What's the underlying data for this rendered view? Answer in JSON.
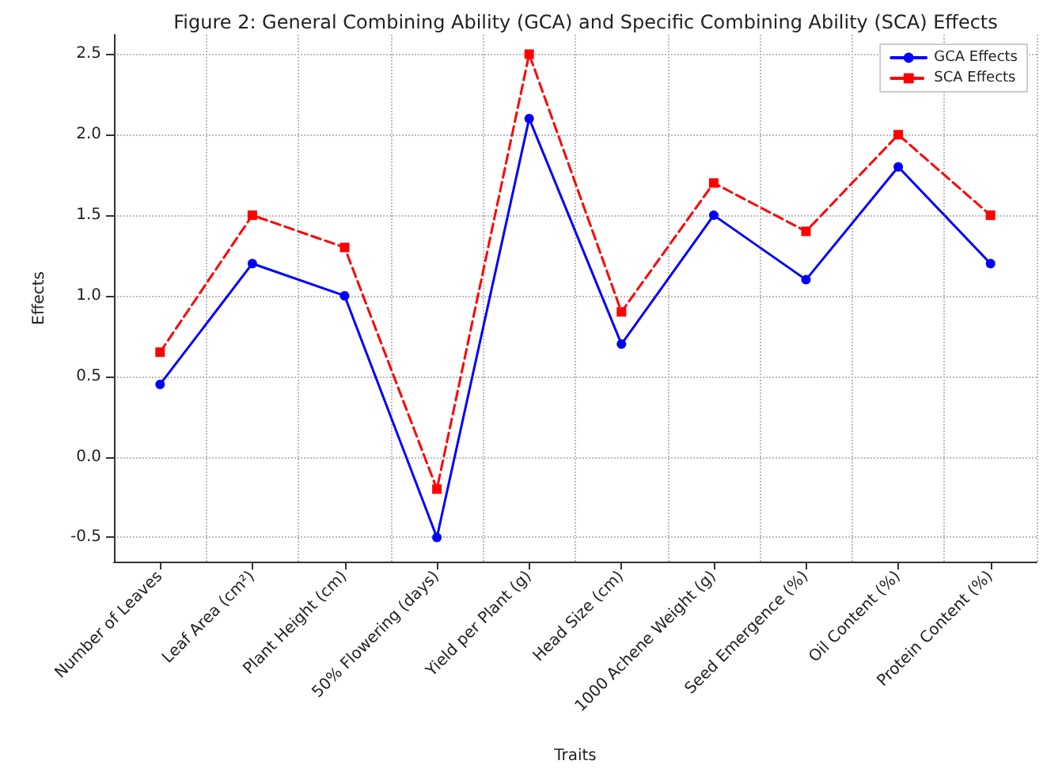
{
  "chart_data": {
    "type": "line",
    "title": "Figure 2: General Combining Ability (GCA) and Specific Combining Ability (SCA) Effects",
    "xlabel": "Traits",
    "ylabel": "Effects",
    "categories": [
      "Number of Leaves",
      "Leaf Area (cm²)",
      "Plant Height (cm)",
      "50% Flowering (days)",
      "Yield per Plant (g)",
      "Head Size (cm)",
      "1000 Achene Weight (g)",
      "Seed Emergence (%)",
      "Oil Content (%)",
      "Protein Content (%)"
    ],
    "series": [
      {
        "name": "GCA Effects",
        "color": "#0000ff",
        "values": [
          0.45,
          1.2,
          1.0,
          -0.5,
          2.1,
          0.7,
          1.5,
          1.1,
          1.8,
          1.2
        ],
        "marker": "circle",
        "line_style": "solid"
      },
      {
        "name": "SCA Effects",
        "color": "#ff0000",
        "values": [
          0.65,
          1.5,
          1.3,
          -0.2,
          2.5,
          0.9,
          1.7,
          1.4,
          2.0,
          1.5
        ],
        "marker": "square",
        "line_style": "dashed"
      }
    ],
    "ylim": [
      -0.65,
      2.62
    ],
    "yticks": [
      -0.5,
      {
        "value": 0,
        "label": "0.0"
      },
      0.5,
      {
        "value": 1,
        "label": "1.0"
      },
      1.5,
      {
        "value": 2,
        "label": "2.0"
      },
      2.5
    ],
    "grid": true,
    "legend": "top right"
  }
}
